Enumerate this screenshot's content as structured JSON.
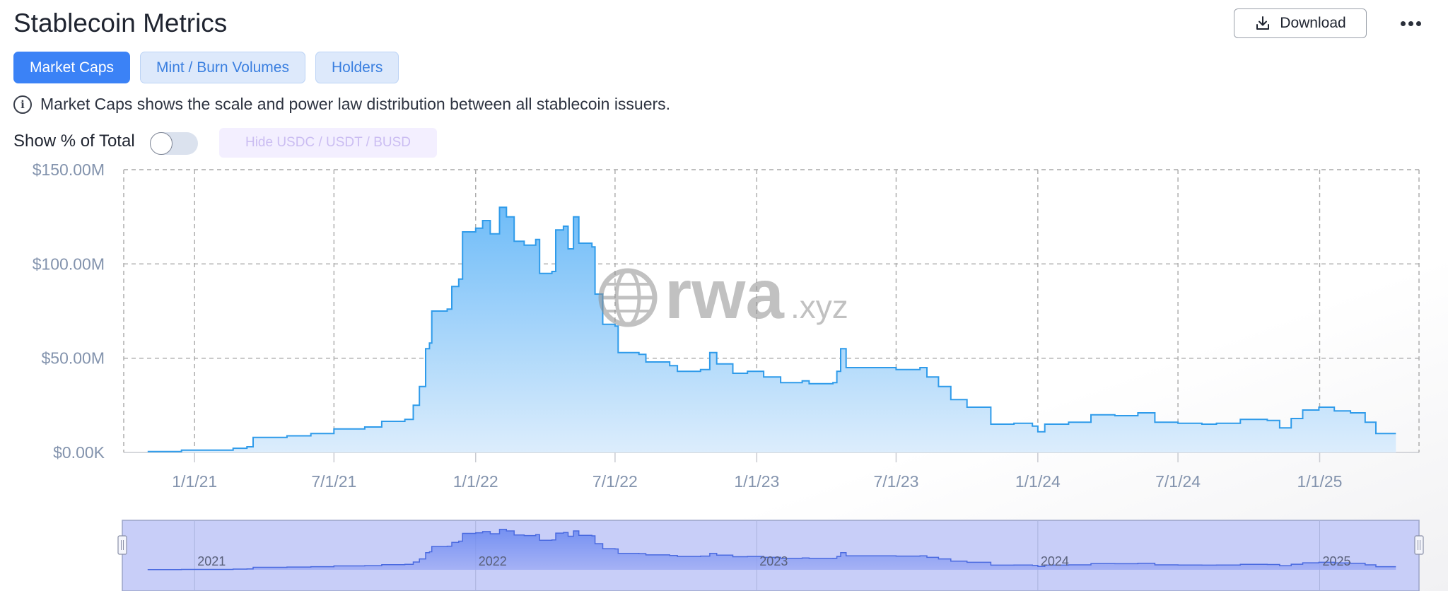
{
  "header": {
    "title": "Stablecoin Metrics",
    "download_label": "Download",
    "download_icon": "download-icon",
    "more_icon": "more-icon"
  },
  "tabs": [
    {
      "label": "Market Caps",
      "active": true
    },
    {
      "label": "Mint / Burn Volumes",
      "active": false
    },
    {
      "label": "Holders",
      "active": false
    }
  ],
  "info_text": "Market Caps shows the scale and power law distribution between all stablecoin issuers.",
  "controls": {
    "show_pct_label": "Show % of Total",
    "show_pct_on": false,
    "hide_label": "Hide USDC / USDT / BUSD"
  },
  "watermark": {
    "main": "rwa",
    "suffix": ".xyz"
  },
  "colors": {
    "accent": "#3b82f6",
    "line": "#2f9bea",
    "area_top": "#6fbcf8",
    "area_bottom": "#dcedfc",
    "navigator": "#c7cdf7"
  },
  "chart_data": {
    "type": "area",
    "x_axis": {
      "type": "date",
      "ticks": [
        "1/1/21",
        "7/1/21",
        "1/1/22",
        "7/1/22",
        "1/1/23",
        "7/1/23",
        "1/1/24",
        "7/1/24",
        "1/1/25"
      ]
    },
    "y_axis": {
      "ticks": [
        "$0.00K",
        "$50.00M",
        "$100.00M",
        "$150.00M"
      ],
      "range": [
        0,
        150000000
      ]
    },
    "grid": true,
    "legend": "none",
    "series": [
      {
        "values": [
          [
            "2020-11-01",
            0.5
          ],
          [
            "2020-12-15",
            1.2
          ],
          [
            "2021-02-20",
            2.2
          ],
          [
            "2021-03-10",
            3.0
          ],
          [
            "2021-03-18",
            8.0
          ],
          [
            "2021-05-01",
            8.8
          ],
          [
            "2021-06-01",
            10.0
          ],
          [
            "2021-07-01",
            12.5
          ],
          [
            "2021-08-10",
            13.5
          ],
          [
            "2021-09-01",
            16.5
          ],
          [
            "2021-10-01",
            17.5
          ],
          [
            "2021-10-12",
            25.0
          ],
          [
            "2021-10-20",
            35.0
          ],
          [
            "2021-10-28",
            55.0
          ],
          [
            "2021-11-02",
            58.0
          ],
          [
            "2021-11-05",
            75.0
          ],
          [
            "2021-11-25",
            76.0
          ],
          [
            "2021-12-01",
            88.0
          ],
          [
            "2021-12-10",
            92.0
          ],
          [
            "2021-12-15",
            117.0
          ],
          [
            "2022-01-01",
            119.0
          ],
          [
            "2022-01-10",
            123.0
          ],
          [
            "2022-01-20",
            116.0
          ],
          [
            "2022-02-01",
            130.0
          ],
          [
            "2022-02-10",
            125.0
          ],
          [
            "2022-02-20",
            112.0
          ],
          [
            "2022-03-05",
            110.0
          ],
          [
            "2022-03-20",
            113.0
          ],
          [
            "2022-03-25",
            95.0
          ],
          [
            "2022-04-10",
            96.0
          ],
          [
            "2022-04-15",
            118.0
          ],
          [
            "2022-04-25",
            120.0
          ],
          [
            "2022-05-01",
            108.0
          ],
          [
            "2022-05-08",
            125.0
          ],
          [
            "2022-05-15",
            111.0
          ],
          [
            "2022-06-01",
            109.0
          ],
          [
            "2022-06-05",
            84.0
          ],
          [
            "2022-06-15",
            68.0
          ],
          [
            "2022-07-01",
            67.0
          ],
          [
            "2022-07-05",
            53.0
          ],
          [
            "2022-08-01",
            52.0
          ],
          [
            "2022-08-10",
            48.0
          ],
          [
            "2022-09-10",
            46.0
          ],
          [
            "2022-09-20",
            43.0
          ],
          [
            "2022-10-20",
            44.0
          ],
          [
            "2022-11-01",
            53.0
          ],
          [
            "2022-11-10",
            47.0
          ],
          [
            "2022-12-01",
            42.0
          ],
          [
            "2022-12-20",
            43.0
          ],
          [
            "2023-01-10",
            40.0
          ],
          [
            "2023-02-01",
            37.0
          ],
          [
            "2023-03-01",
            38.0
          ],
          [
            "2023-03-10",
            36.5
          ],
          [
            "2023-04-10",
            37.0
          ],
          [
            "2023-04-15",
            43.0
          ],
          [
            "2023-04-20",
            55.0
          ],
          [
            "2023-04-27",
            45.0
          ],
          [
            "2023-07-01",
            44.0
          ],
          [
            "2023-08-01",
            45.0
          ],
          [
            "2023-08-10",
            40.0
          ],
          [
            "2023-08-25",
            35.0
          ],
          [
            "2023-09-10",
            28.0
          ],
          [
            "2023-10-01",
            24.0
          ],
          [
            "2023-11-01",
            15.0
          ],
          [
            "2023-12-01",
            15.5
          ],
          [
            "2023-12-25",
            14.0
          ],
          [
            "2024-01-01",
            11.0
          ],
          [
            "2024-01-10",
            15.0
          ],
          [
            "2024-02-10",
            16.0
          ],
          [
            "2024-03-10",
            20.0
          ],
          [
            "2024-04-10",
            19.5
          ],
          [
            "2024-05-10",
            21.0
          ],
          [
            "2024-06-01",
            16.0
          ],
          [
            "2024-07-01",
            15.5
          ],
          [
            "2024-08-01",
            15.0
          ],
          [
            "2024-08-20",
            15.5
          ],
          [
            "2024-09-20",
            17.5
          ],
          [
            "2024-10-25",
            17.0
          ],
          [
            "2024-11-10",
            13.0
          ],
          [
            "2024-11-25",
            18.0
          ],
          [
            "2024-12-10",
            22.5
          ],
          [
            "2024-12-31",
            24.0
          ],
          [
            "2025-01-20",
            22.0
          ],
          [
            "2025-02-10",
            21.0
          ],
          [
            "2025-03-01",
            16.0
          ],
          [
            "2025-03-15",
            10.0
          ],
          [
            "2025-04-10",
            10.0
          ]
        ]
      }
    ],
    "navigator": {
      "labels": [
        "2021",
        "2022",
        "2023",
        "2024",
        "2025"
      ]
    }
  }
}
